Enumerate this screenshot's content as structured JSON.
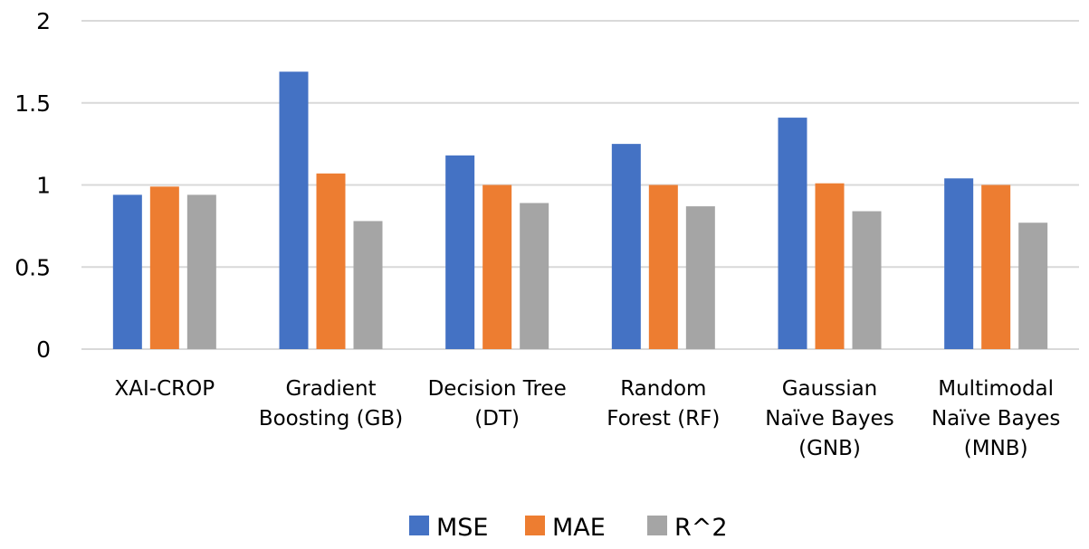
{
  "chart_data": {
    "type": "bar",
    "title": "",
    "xlabel": "",
    "ylabel": "",
    "ylim": [
      0,
      2
    ],
    "yticks": [
      0,
      0.5,
      1,
      1.5,
      2
    ],
    "ytick_labels": [
      "0",
      "0.5",
      "1",
      "1.5",
      "2"
    ],
    "grid": true,
    "legend_position": "bottom",
    "categories": [
      [
        "XAI-CROP"
      ],
      [
        "Gradient",
        "Boosting (GB)"
      ],
      [
        "Decision Tree",
        "(DT)"
      ],
      [
        "Random",
        "Forest (RF)"
      ],
      [
        "Gaussian",
        "Naïve Bayes",
        "(GNB)"
      ],
      [
        "Multimodal",
        "Naïve Bayes",
        "(MNB)"
      ]
    ],
    "series": [
      {
        "name": "MSE",
        "color": "#4472C4",
        "values": [
          0.94,
          1.69,
          1.18,
          1.25,
          1.41,
          1.04
        ]
      },
      {
        "name": "MAE",
        "color": "#ED7D31",
        "values": [
          0.99,
          1.07,
          1.0,
          1.0,
          1.01,
          1.0
        ]
      },
      {
        "name": "R^2",
        "color": "#A5A5A5",
        "values": [
          0.94,
          0.78,
          0.89,
          0.87,
          0.84,
          0.77
        ]
      }
    ]
  }
}
